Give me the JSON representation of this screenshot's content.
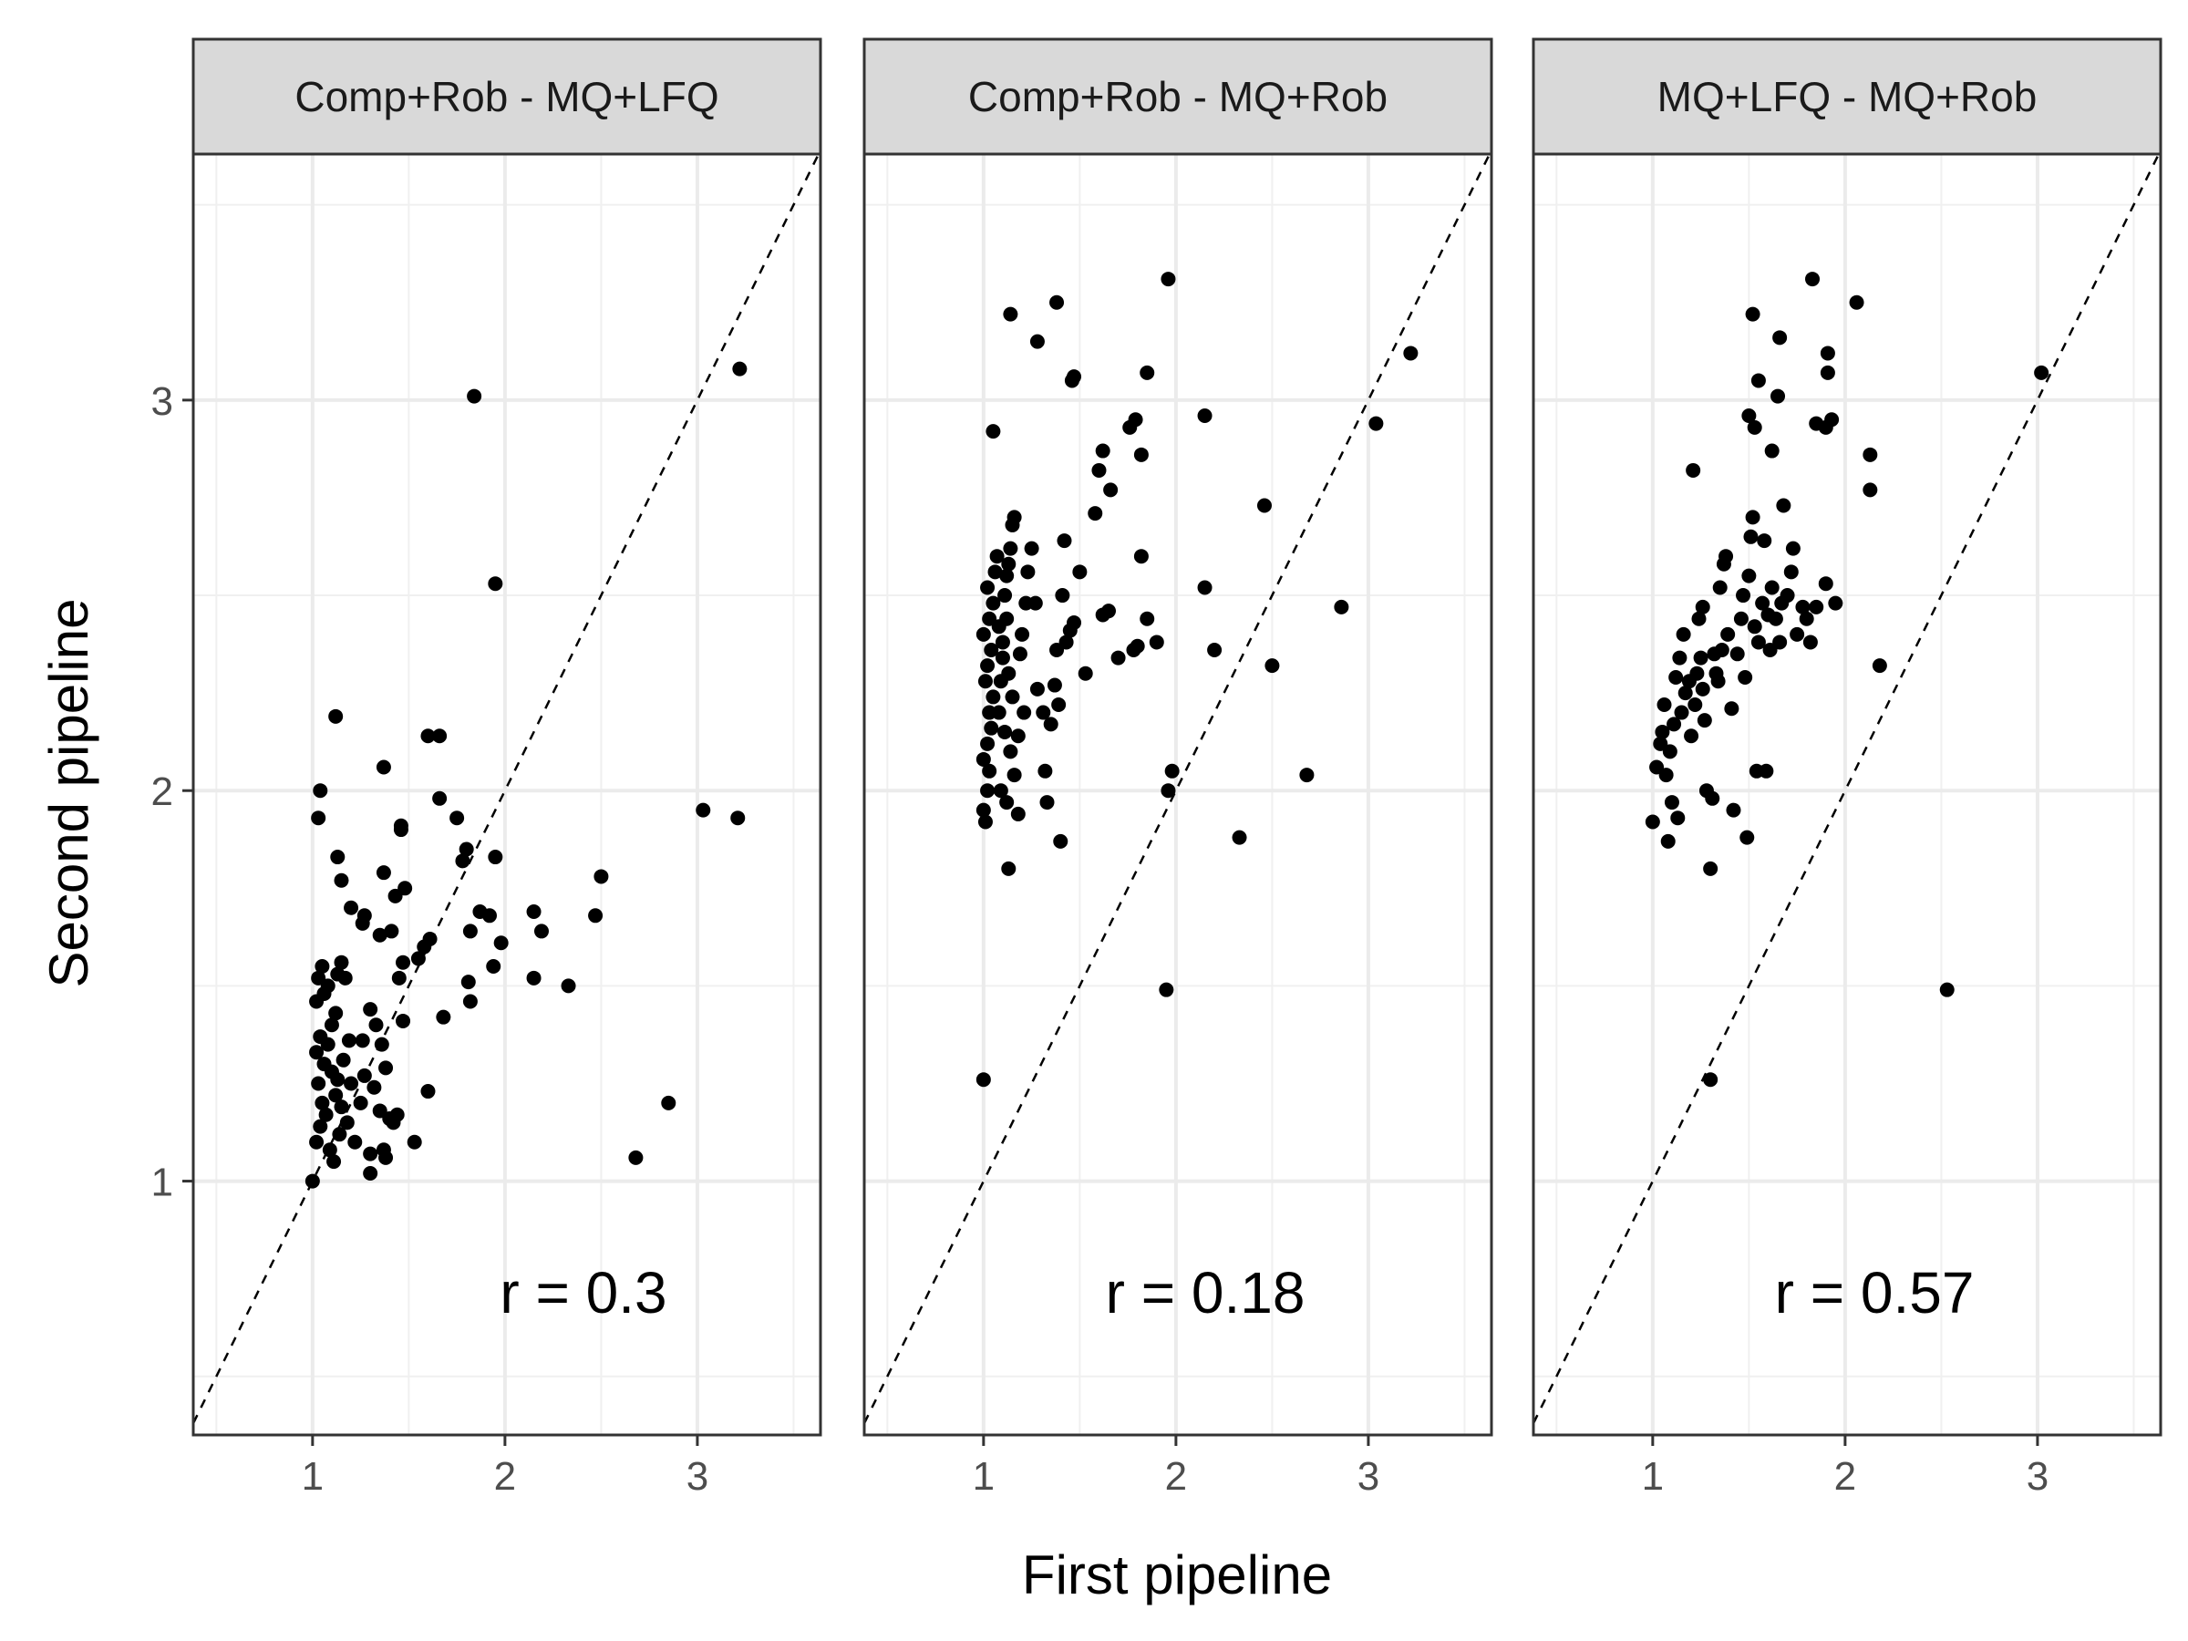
{
  "chart_data": {
    "type": "scatter",
    "xlabel": "First pipeline",
    "ylabel": "Second pipeline",
    "xlim": [
      0.38,
      3.64
    ],
    "ylim": [
      0.35,
      3.63
    ],
    "x_ticks": [
      1,
      2,
      3
    ],
    "y_ticks": [
      1,
      2,
      3
    ],
    "grid": true,
    "reference_line": "y = x (dashed)",
    "panels": [
      {
        "name": "Comp+Rob - MQ+LFQ",
        "annotation": "r = 0.3",
        "points": [
          [
            1.0,
            1.0
          ],
          [
            1.02,
            1.1
          ],
          [
            1.04,
            1.14
          ],
          [
            1.05,
            1.2
          ],
          [
            1.03,
            1.25
          ],
          [
            1.06,
            1.3
          ],
          [
            1.02,
            1.33
          ],
          [
            1.08,
            1.35
          ],
          [
            1.1,
            1.28
          ],
          [
            1.12,
            1.22
          ],
          [
            1.07,
            1.17
          ],
          [
            1.09,
            1.08
          ],
          [
            1.11,
            1.05
          ],
          [
            1.14,
            1.12
          ],
          [
            1.15,
            1.19
          ],
          [
            1.13,
            1.26
          ],
          [
            1.16,
            1.31
          ],
          [
            1.04,
            1.37
          ],
          [
            1.1,
            1.4
          ],
          [
            1.12,
            1.43
          ],
          [
            1.02,
            1.46
          ],
          [
            1.06,
            1.48
          ],
          [
            1.03,
            1.52
          ],
          [
            1.05,
            1.55
          ],
          [
            1.08,
            1.5
          ],
          [
            1.13,
            1.53
          ],
          [
            1.15,
            1.56
          ],
          [
            1.17,
            1.52
          ],
          [
            1.19,
            1.36
          ],
          [
            1.2,
            1.25
          ],
          [
            1.18,
            1.15
          ],
          [
            1.22,
            1.1
          ],
          [
            1.25,
            1.2
          ],
          [
            1.27,
            1.27
          ],
          [
            1.26,
            1.36
          ],
          [
            1.3,
            1.44
          ],
          [
            1.33,
            1.4
          ],
          [
            1.36,
            1.35
          ],
          [
            1.38,
            1.29
          ],
          [
            1.32,
            1.24
          ],
          [
            1.35,
            1.18
          ],
          [
            1.4,
            1.16
          ],
          [
            1.42,
            1.15
          ],
          [
            1.37,
            1.08
          ],
          [
            1.3,
            1.07
          ],
          [
            1.3,
            1.02
          ],
          [
            1.38,
            1.06
          ],
          [
            1.44,
            1.17
          ],
          [
            1.47,
            1.41
          ],
          [
            1.53,
            1.1
          ],
          [
            1.6,
            1.23
          ],
          [
            1.45,
            1.52
          ],
          [
            1.47,
            1.56
          ],
          [
            1.55,
            1.57
          ],
          [
            1.58,
            1.6
          ],
          [
            1.61,
            1.62
          ],
          [
            1.41,
            1.64
          ],
          [
            1.48,
            1.75
          ],
          [
            1.43,
            1.73
          ],
          [
            1.37,
            1.79
          ],
          [
            1.35,
            1.63
          ],
          [
            1.26,
            1.66
          ],
          [
            1.27,
            1.68
          ],
          [
            1.2,
            1.7
          ],
          [
            1.15,
            1.77
          ],
          [
            1.13,
            1.83
          ],
          [
            1.03,
            1.93
          ],
          [
            1.04,
            2.0
          ],
          [
            1.12,
            2.19
          ],
          [
            1.37,
            2.06
          ],
          [
            1.46,
            1.9
          ],
          [
            1.46,
            1.91
          ],
          [
            1.6,
            2.14
          ],
          [
            1.66,
            2.14
          ],
          [
            1.66,
            1.98
          ],
          [
            1.75,
            1.93
          ],
          [
            1.8,
            1.85
          ],
          [
            1.78,
            1.82
          ],
          [
            1.95,
            1.83
          ],
          [
            1.68,
            1.42
          ],
          [
            1.82,
            1.46
          ],
          [
            1.81,
            1.51
          ],
          [
            1.87,
            1.69
          ],
          [
            1.92,
            1.68
          ],
          [
            1.82,
            1.64
          ],
          [
            1.94,
            1.55
          ],
          [
            1.98,
            1.61
          ],
          [
            2.15,
            1.69
          ],
          [
            2.19,
            1.64
          ],
          [
            2.15,
            1.52
          ],
          [
            2.33,
            1.5
          ],
          [
            2.47,
            1.68
          ],
          [
            2.5,
            1.78
          ],
          [
            2.68,
            1.06
          ],
          [
            2.85,
            1.2
          ],
          [
            3.03,
            1.95
          ],
          [
            3.21,
            1.93
          ],
          [
            3.22,
            3.08
          ],
          [
            1.95,
            2.53
          ],
          [
            1.84,
            3.01
          ]
        ]
      },
      {
        "name": "Comp+Rob - MQ+Rob",
        "annotation": "r = 0.18",
        "points": [
          [
            1.0,
            1.95
          ],
          [
            1.01,
            1.92
          ],
          [
            1.02,
            2.0
          ],
          [
            1.03,
            2.05
          ],
          [
            1.0,
            2.08
          ],
          [
            1.02,
            2.12
          ],
          [
            1.04,
            2.16
          ],
          [
            1.03,
            2.2
          ],
          [
            1.05,
            2.24
          ],
          [
            1.01,
            2.28
          ],
          [
            1.02,
            2.32
          ],
          [
            1.04,
            2.36
          ],
          [
            1.0,
            2.4
          ],
          [
            1.03,
            2.44
          ],
          [
            1.05,
            2.48
          ],
          [
            1.02,
            2.52
          ],
          [
            1.06,
            2.56
          ],
          [
            1.07,
            2.6
          ],
          [
            1.08,
            2.2
          ],
          [
            1.09,
            2.28
          ],
          [
            1.1,
            2.34
          ],
          [
            1.08,
            2.42
          ],
          [
            1.11,
            2.5
          ],
          [
            1.12,
            2.55
          ],
          [
            1.13,
            2.58
          ],
          [
            1.14,
            2.62
          ],
          [
            1.15,
            2.68
          ],
          [
            1.16,
            2.7
          ],
          [
            1.12,
            2.44
          ],
          [
            1.1,
            2.38
          ],
          [
            1.13,
            2.3
          ],
          [
            1.15,
            2.24
          ],
          [
            1.11,
            2.15
          ],
          [
            1.14,
            2.1
          ],
          [
            1.16,
            2.04
          ],
          [
            1.09,
            2.0
          ],
          [
            1.12,
            1.97
          ],
          [
            1.18,
            1.94
          ],
          [
            1.18,
            2.14
          ],
          [
            1.19,
            2.35
          ],
          [
            1.2,
            2.4
          ],
          [
            1.22,
            2.48
          ],
          [
            1.21,
            2.2
          ],
          [
            1.23,
            2.56
          ],
          [
            1.25,
            2.62
          ],
          [
            1.27,
            2.48
          ],
          [
            1.28,
            2.26
          ],
          [
            1.31,
            2.2
          ],
          [
            1.32,
            2.05
          ],
          [
            1.33,
            1.97
          ],
          [
            1.35,
            2.17
          ],
          [
            1.37,
            2.27
          ],
          [
            1.38,
            2.36
          ],
          [
            1.39,
            2.22
          ],
          [
            1.41,
            2.5
          ],
          [
            1.43,
            2.38
          ],
          [
            1.45,
            2.41
          ],
          [
            1.47,
            2.43
          ],
          [
            1.42,
            2.64
          ],
          [
            1.5,
            2.56
          ],
          [
            1.53,
            2.3
          ],
          [
            1.58,
            2.71
          ],
          [
            1.62,
            2.45
          ],
          [
            1.65,
            2.46
          ],
          [
            1.7,
            2.34
          ],
          [
            1.78,
            2.36
          ],
          [
            1.8,
            2.37
          ],
          [
            1.85,
            2.44
          ],
          [
            1.9,
            2.38
          ],
          [
            1.82,
            2.6
          ],
          [
            1.79,
            2.95
          ],
          [
            1.76,
            2.93
          ],
          [
            1.82,
            2.86
          ],
          [
            1.6,
            2.82
          ],
          [
            1.66,
            2.77
          ],
          [
            1.62,
            2.87
          ],
          [
            1.85,
            3.07
          ],
          [
            1.96,
            3.31
          ],
          [
            1.46,
            3.05
          ],
          [
            1.47,
            3.06
          ],
          [
            1.28,
            3.15
          ],
          [
            1.38,
            3.25
          ],
          [
            1.14,
            3.22
          ],
          [
            1.05,
            2.92
          ],
          [
            1.4,
            1.87
          ],
          [
            1.13,
            1.8
          ],
          [
            1.0,
            1.26
          ],
          [
            1.95,
            1.49
          ],
          [
            1.96,
            2.0
          ],
          [
            1.98,
            2.05
          ],
          [
            2.15,
            2.96
          ],
          [
            2.15,
            2.52
          ],
          [
            2.2,
            2.36
          ],
          [
            2.33,
            1.88
          ],
          [
            2.46,
            2.73
          ],
          [
            2.5,
            2.32
          ],
          [
            2.68,
            2.04
          ],
          [
            2.86,
            2.47
          ],
          [
            3.04,
            2.94
          ],
          [
            3.22,
            3.12
          ]
        ]
      },
      {
        "name": "MQ+LFQ - MQ+Rob",
        "annotation": "r = 0.57",
        "points": [
          [
            1.0,
            1.92
          ],
          [
            1.02,
            2.06
          ],
          [
            1.04,
            2.12
          ],
          [
            1.05,
            2.15
          ],
          [
            1.06,
            2.22
          ],
          [
            1.08,
            1.87
          ],
          [
            1.1,
            1.97
          ],
          [
            1.07,
            2.04
          ],
          [
            1.09,
            2.1
          ],
          [
            1.11,
            2.17
          ],
          [
            1.13,
            1.93
          ],
          [
            1.12,
            2.29
          ],
          [
            1.14,
            2.34
          ],
          [
            1.16,
            2.4
          ],
          [
            1.15,
            2.2
          ],
          [
            1.17,
            2.25
          ],
          [
            1.19,
            2.28
          ],
          [
            1.2,
            2.14
          ],
          [
            1.22,
            2.22
          ],
          [
            1.23,
            2.3
          ],
          [
            1.25,
            2.34
          ],
          [
            1.27,
            2.18
          ],
          [
            1.26,
            2.26
          ],
          [
            1.24,
            2.44
          ],
          [
            1.26,
            2.47
          ],
          [
            1.28,
            2.0
          ],
          [
            1.3,
            1.8
          ],
          [
            1.31,
            1.98
          ],
          [
            1.33,
            2.3
          ],
          [
            1.32,
            2.35
          ],
          [
            1.34,
            2.28
          ],
          [
            1.36,
            2.36
          ],
          [
            1.35,
            2.52
          ],
          [
            1.37,
            2.58
          ],
          [
            1.38,
            2.6
          ],
          [
            1.39,
            2.4
          ],
          [
            1.41,
            2.21
          ],
          [
            1.42,
            1.95
          ],
          [
            1.44,
            2.35
          ],
          [
            1.46,
            2.44
          ],
          [
            1.47,
            2.5
          ],
          [
            1.48,
            2.29
          ],
          [
            1.49,
            1.88
          ],
          [
            1.5,
            2.55
          ],
          [
            1.51,
            2.65
          ],
          [
            1.52,
            2.7
          ],
          [
            1.53,
            2.42
          ],
          [
            1.54,
            2.05
          ],
          [
            1.55,
            2.38
          ],
          [
            1.57,
            2.48
          ],
          [
            1.58,
            2.64
          ],
          [
            1.6,
            2.45
          ],
          [
            1.61,
            2.36
          ],
          [
            1.62,
            2.52
          ],
          [
            1.64,
            2.44
          ],
          [
            1.66,
            2.38
          ],
          [
            1.67,
            2.48
          ],
          [
            1.68,
            2.73
          ],
          [
            1.7,
            2.5
          ],
          [
            1.72,
            2.56
          ],
          [
            1.73,
            2.62
          ],
          [
            1.75,
            2.4
          ],
          [
            1.78,
            2.47
          ],
          [
            1.8,
            2.44
          ],
          [
            1.82,
            2.38
          ],
          [
            1.85,
            2.47
          ],
          [
            1.9,
            2.53
          ],
          [
            1.95,
            2.48
          ],
          [
            1.59,
            2.05
          ],
          [
            1.21,
            2.82
          ],
          [
            1.5,
            2.96
          ],
          [
            1.53,
            2.93
          ],
          [
            1.62,
            2.87
          ],
          [
            1.65,
            3.01
          ],
          [
            1.55,
            3.05
          ],
          [
            1.52,
            3.22
          ],
          [
            1.66,
            3.16
          ],
          [
            1.83,
            3.31
          ],
          [
            1.85,
            2.94
          ],
          [
            1.9,
            2.93
          ],
          [
            1.93,
            2.95
          ],
          [
            1.91,
            3.07
          ],
          [
            1.91,
            3.12
          ],
          [
            2.06,
            3.25
          ],
          [
            2.13,
            2.86
          ],
          [
            2.13,
            2.77
          ],
          [
            2.18,
            2.32
          ],
          [
            2.53,
            1.49
          ],
          [
            1.3,
            1.26
          ],
          [
            3.02,
            3.07
          ]
        ]
      }
    ]
  }
}
